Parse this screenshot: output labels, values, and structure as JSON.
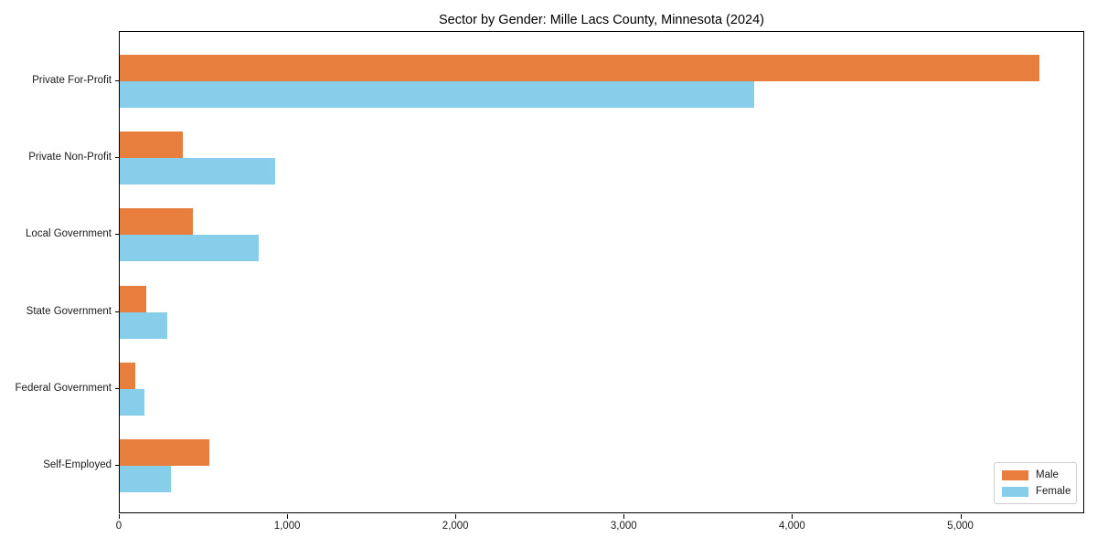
{
  "chart_data": {
    "type": "bar",
    "orientation": "horizontal",
    "title": "Sector by Gender: Mille Lacs County, Minnesota (2024)",
    "categories": [
      "Private For-Profit",
      "Private Non-Profit",
      "Local Government",
      "State Government",
      "Federal Government",
      "Self-Employed"
    ],
    "series": [
      {
        "name": "Male",
        "color": "#E87E3D",
        "values": [
          5465,
          375,
          435,
          155,
          90,
          535
        ]
      },
      {
        "name": "Female",
        "color": "#87CEEB",
        "values": [
          3770,
          925,
          825,
          285,
          145,
          305
        ]
      }
    ],
    "xlabel": "",
    "ylabel": "",
    "xlim": [
      0,
      5736
    ],
    "x_ticks": {
      "values": [
        0,
        1000,
        2000,
        3000,
        4000,
        5000
      ],
      "labels": [
        "0",
        "1,000",
        "2,000",
        "3,000",
        "4,000",
        "5,000"
      ]
    },
    "legend": {
      "position": "lower-right",
      "entries": [
        "Male",
        "Female"
      ]
    },
    "grid": false
  }
}
